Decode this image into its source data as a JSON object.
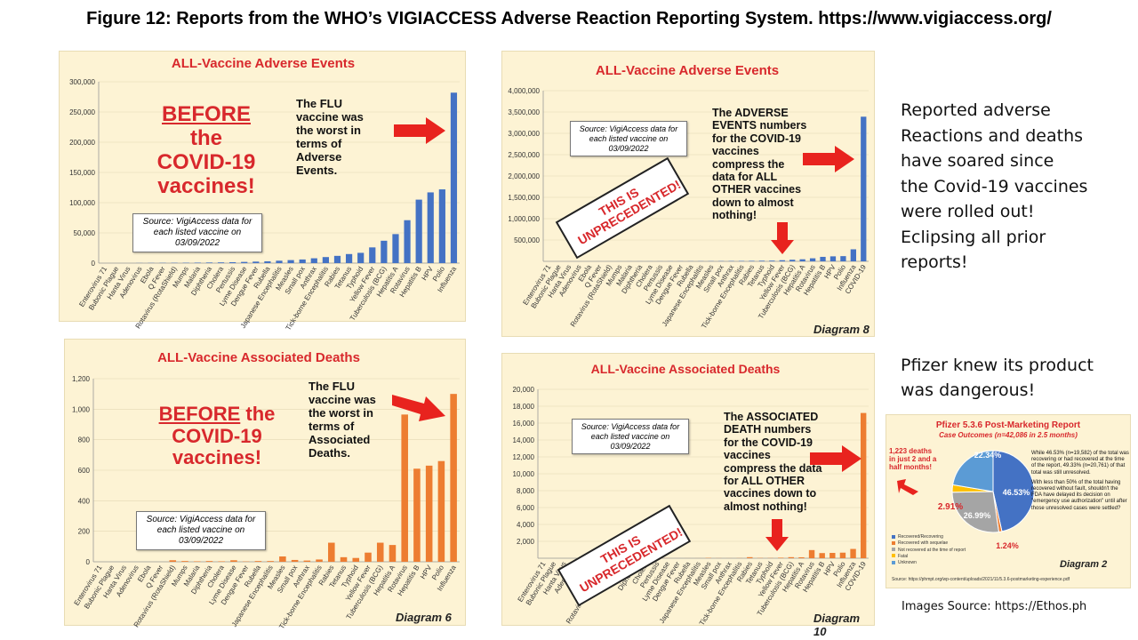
{
  "figure_title": "Figure 12: Reports from the WHO’s VIGIACCESS Adverse Reaction Reporting System. https://www.vigiaccess.org/",
  "colors": {
    "blue": "#4472c4",
    "orange": "#ed7d31",
    "red": "#d8282c",
    "panel_bg": "#fdf3d4"
  },
  "panels": {
    "p1": {
      "before": [
        "BEFORE",
        "the",
        "COVID-19",
        "vaccines!"
      ],
      "note": [
        "The FLU",
        "vaccine was",
        "the worst in",
        "terms of",
        "Adverse",
        "Events."
      ],
      "source": [
        "Source: VigiAccess data for",
        "each listed vaccine on",
        "03/09/2022"
      ]
    },
    "p2": {
      "source": [
        "Source: VigiAccess data for",
        "each listed vaccine on",
        "03/09/2022"
      ],
      "stamp": [
        "THIS IS",
        "UNPRECEDENTED!"
      ],
      "note": [
        "The ADVERSE",
        "EVENTS numbers",
        "for the COVID-19",
        "vaccines",
        "compress the",
        "data for ALL",
        "OTHER vaccines",
        "down to almost",
        "nothing!"
      ],
      "diagram": "Diagram 8"
    },
    "p3": {
      "before_line1": "BEFORE",
      "before_line1b": " the",
      "before_rest": [
        "COVID-19",
        "vaccines!"
      ],
      "note": [
        "The FLU",
        "vaccine was",
        "the worst in",
        "terms of",
        "Associated",
        "Deaths."
      ],
      "source": [
        "Source: VigiAccess data for",
        "each listed vaccine on",
        "03/09/2022"
      ],
      "diagram": "Diagram 6"
    },
    "p4": {
      "source": [
        "Source: VigiAccess data for",
        "each listed vaccine on",
        "03/09/2022"
      ],
      "stamp": [
        "THIS IS",
        "UNPRECEDENTED!"
      ],
      "note": [
        "The ASSOCIATED",
        "DEATH numbers",
        "for the COVID-19",
        "vaccines",
        "compress the data",
        "for ALL OTHER",
        "vaccines down to",
        "almost nothing!"
      ],
      "diagram": "Diagram 10"
    }
  },
  "side_text": [
    "Reported adverse",
    "Reactions and deaths",
    "have soared since",
    "the Covid-19 vaccines",
    "were rolled out!",
    "Eclipsing all prior",
    "reports!"
  ],
  "side_text2": [
    "Pfizer knew its product",
    "was dangerous!"
  ],
  "image_source": "Images Source:    https://Ethos.ph",
  "pfizer": {
    "title": "Pfizer 5.3.6 Post-Marketing Report",
    "subtitle": "Case Outcomes (n=42,086 in 2.5 months)",
    "deaths_note": [
      "1,223 deaths",
      "in just 2 and a",
      "half months!"
    ],
    "text1": "While 46.53% (n=19,582) of the total was recovering or had recovered at the time of the report, 49.33% (n=20,761) of that total was still unresolved.",
    "text2": "With less than 50% of the total having recovered without fault, shouldn't the FDA have delayed its decision on \"emergency use authorization\" until after those unresolved cases were settled?",
    "diagram": "Diagram 2",
    "url": "Source: https://phmpt.org/wp-content/uploads/2021/11/5.3.6-postmarketing-experience.pdf",
    "legend": [
      "Recovered/Recovering",
      "Recovered with sequelae",
      "Not recovered at the time of report",
      "Fatal",
      "Unknown"
    ]
  },
  "chart_data": [
    {
      "type": "bar",
      "title": "ALL-Vaccine Adverse Events",
      "color": "#4472c4",
      "categories": [
        "Enterovirus 71",
        "Bubonic Plague",
        "Hanta Virus",
        "Adenovirus",
        "Ebola",
        "Q Fever",
        "Rotavirus (RotaShield)",
        "Mumps",
        "Malaria",
        "Diphtheria",
        "Cholera",
        "Pertussis",
        "Lyme Disease",
        "Dengue Fever",
        "Rubella",
        "Japanese Encephalitis",
        "Measles",
        "Small pox",
        "Anthrax",
        "Tick-borne Encephalitis",
        "Rabies",
        "Tetanus",
        "Typhoid",
        "Yellow Fever",
        "Tuberculosis (BCG)",
        "Hepatitis A",
        "Rotavirus",
        "Hepatitis B",
        "HPV",
        "Polio",
        "Influenza"
      ],
      "values": [
        0,
        0,
        0,
        200,
        300,
        400,
        500,
        600,
        800,
        1000,
        1200,
        1500,
        2000,
        2500,
        3000,
        4000,
        5000,
        6000,
        8000,
        10000,
        12000,
        15000,
        17000,
        26000,
        37000,
        48000,
        71000,
        105000,
        117000,
        122000,
        282000
      ],
      "ylim": [
        0,
        300000
      ],
      "yticks": [
        "0",
        "50,000",
        "100,000",
        "150,000",
        "200,000",
        "250,000",
        "300,000"
      ]
    },
    {
      "type": "bar",
      "title": "ALL-Vaccine Adverse Events",
      "color": "#4472c4",
      "categories": [
        "Enterovirus 71",
        "Bubonic Plague",
        "Hanta Virus",
        "Adenovirus",
        "Ebola",
        "Q Fever",
        "Rotavirus (RotaShield)",
        "Mumps",
        "Malaria",
        "Diphtheria",
        "Cholera",
        "Pertussis",
        "Lyme Disease",
        "Dengue Fever",
        "Rubella",
        "Japanese Encephalitis",
        "Measles",
        "Small pox",
        "Anthrax",
        "Tick-borne Encephalitis",
        "Rabies",
        "Tetanus",
        "Typhoid",
        "Yellow Fever",
        "Tuberculosis (BCG)",
        "Hepatitis A",
        "Rotavirus",
        "Hepatitis B",
        "HPV",
        "Polio",
        "Influenza",
        "COVID-19"
      ],
      "values": [
        0,
        0,
        0,
        200,
        300,
        400,
        500,
        600,
        800,
        1000,
        1200,
        1500,
        2000,
        2500,
        3000,
        4000,
        5000,
        6000,
        8000,
        10000,
        12000,
        15000,
        17000,
        26000,
        37000,
        48000,
        71000,
        105000,
        117000,
        122000,
        282000,
        3390000
      ],
      "ylim": [
        0,
        4000000
      ],
      "yticks": [
        "",
        "500,000",
        "1,000,000",
        "1,500,000",
        "2,000,000",
        "2,500,000",
        "3,000,000",
        "3,500,000",
        "4,000,000"
      ]
    },
    {
      "type": "bar",
      "title": "ALL-Vaccine Associated Deaths",
      "color": "#ed7d31",
      "categories": [
        "Enterovirus 71",
        "Bubonic Plague",
        "Hanta Virus",
        "Adenovirus",
        "Ebola",
        "Q Fever",
        "Rotavirus (RotaShield)",
        "Mumps",
        "Malaria",
        "Diphtheria",
        "Cholera",
        "Lyme Disease",
        "Dengue Fever",
        "Rubella",
        "Japanese Encephalitis",
        "Measles",
        "Small pox",
        "Anthrax",
        "Tick-borne Encephalitis",
        "Rabies",
        "Tetanus",
        "Typhoid",
        "Yellow Fever",
        "Tuberculosis (BCG)",
        "Hepatitis A",
        "Rotavirus",
        "Hepatitis B",
        "HPV",
        "Polio",
        "Influenza"
      ],
      "values": [
        0,
        0,
        0,
        0,
        0,
        0,
        10,
        5,
        3,
        5,
        3,
        10,
        2,
        5,
        5,
        35,
        12,
        8,
        15,
        125,
        30,
        25,
        60,
        125,
        110,
        965,
        610,
        630,
        660,
        1100
      ],
      "ylim": [
        0,
        1200
      ],
      "yticks": [
        "0",
        "200",
        "400",
        "600",
        "800",
        "1,000",
        "1,200"
      ]
    },
    {
      "type": "bar",
      "title": "ALL-Vaccine Associated Deaths",
      "color": "#ed7d31",
      "categories": [
        "Enterovirus 71",
        "Bubonic Plague",
        "Hanta Virus",
        "Adenovirus",
        "Ebola",
        "Q Fever",
        "Rotavirus (RotaShield)",
        "Mumps",
        "Malaria",
        "Diphtheria",
        "Cholera",
        "Pertussis",
        "Lyme Disease",
        "Dengue Fever",
        "Rubella",
        "Japanese Encephalitis",
        "Measles",
        "Small pox",
        "Anthrax",
        "Tick-borne Encephalitis",
        "Rabies",
        "Tetanus",
        "Typhoid",
        "Yellow Fever",
        "Tuberculosis (BCG)",
        "Hepatitis A",
        "Rotavirus",
        "Hepatitis B",
        "HPV",
        "Polio",
        "Influenza",
        "COVID-19"
      ],
      "values": [
        0,
        0,
        0,
        0,
        0,
        0,
        10,
        5,
        3,
        5,
        3,
        5,
        10,
        2,
        5,
        5,
        35,
        12,
        8,
        15,
        125,
        30,
        25,
        60,
        125,
        110,
        965,
        610,
        630,
        660,
        1100,
        17200
      ],
      "ylim": [
        0,
        20000
      ],
      "yticks": [
        "",
        "2,000",
        "4,000",
        "6,000",
        "8,000",
        "10,000",
        "12,000",
        "14,000",
        "16,000",
        "18,000",
        "20,000"
      ]
    },
    {
      "type": "pie",
      "title": "Pfizer 5.3.6 Post-Marketing Report",
      "labels": [
        "Recovered/Recovering",
        "Recovered with sequelae",
        "Not recovered at the time of report",
        "Fatal",
        "Unknown"
      ],
      "values": [
        46.53,
        1.24,
        26.99,
        2.91,
        22.34
      ],
      "value_labels": [
        "46.53%",
        "1.24%",
        "26.99%",
        "2.91%",
        "22.34%"
      ],
      "colors": [
        "#4472c4",
        "#ed7d31",
        "#a5a5a5",
        "#ffc000",
        "#5b9bd5"
      ]
    }
  ]
}
